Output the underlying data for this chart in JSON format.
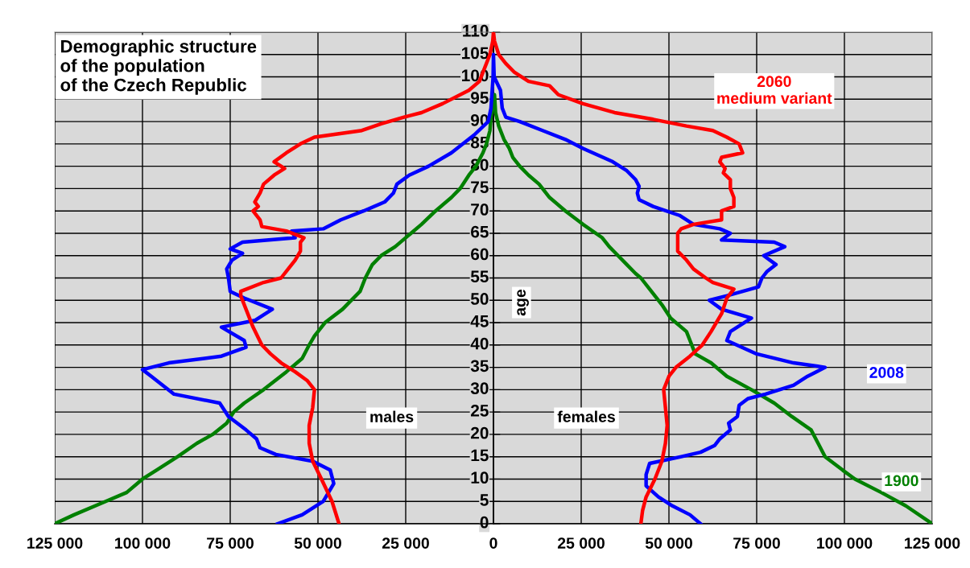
{
  "chart_data": {
    "type": "line",
    "title": "Demographic structure\nof the population\nof the Czech Republic",
    "ylabel": "age",
    "annotations": [
      "males",
      "females"
    ],
    "xlim": [
      -125000,
      125000
    ],
    "xticks": [
      {
        "value": -125000,
        "label": "125 000"
      },
      {
        "value": -100000,
        "label": "100 000"
      },
      {
        "value": -75000,
        "label": "75 000"
      },
      {
        "value": -50000,
        "label": "50 000"
      },
      {
        "value": -25000,
        "label": "25 000"
      },
      0,
      {
        "value": 25000,
        "label": "25 000"
      },
      {
        "value": 50000,
        "label": "50 000"
      },
      {
        "value": 75000,
        "label": "75 000"
      },
      {
        "value": 100000,
        "label": "100 000"
      },
      {
        "value": 125000,
        "label": "125 000"
      }
    ],
    "ylim": [
      0,
      110
    ],
    "yticks": [
      0,
      5,
      10,
      15,
      20,
      25,
      30,
      35,
      40,
      45,
      50,
      55,
      60,
      65,
      70,
      75,
      80,
      85,
      90,
      95,
      100,
      105,
      110
    ],
    "grid": true,
    "legend": false,
    "marker": "none",
    "line_style": "solid",
    "series": [
      {
        "name": "2060\nmedium variant",
        "color": "#ff0000",
        "x": [
          -44000,
          -46000,
          -49000,
          -51500,
          -52500,
          -52500,
          -51500,
          -51000,
          -53000,
          -56500,
          -60500,
          -63500,
          -66000,
          -68500,
          -70500,
          -72000,
          -72000,
          -65500,
          -60500,
          -58500,
          -56500,
          -55000,
          -55000,
          -54000,
          -59000,
          -66000,
          -66500,
          -68500,
          -67000,
          -68000,
          -66500,
          -65500,
          -62500,
          -59500,
          -62500,
          -59000,
          -55000,
          -51000,
          -37500,
          -32000,
          -25500,
          -20500,
          -14500,
          -7000,
          -4000,
          -2500,
          -1000,
          -200,
          0,
          300,
          1500,
          3500,
          6000,
          10000,
          16000,
          18500,
          25500,
          34500,
          45500,
          55000,
          62500,
          66500,
          70000,
          71000,
          65000,
          64500,
          66000,
          65500,
          67500,
          67500,
          68500,
          68500,
          65000,
          65000,
          57000,
          53500,
          52500,
          52500,
          52500,
          55000,
          57000,
          60500,
          62500,
          68500,
          66500,
          65000,
          62000,
          59500,
          56000,
          52000,
          50000,
          48500,
          49000,
          49500,
          49000,
          48000,
          46000,
          43500,
          42500,
          42000
        ],
        "values": [
          0,
          5,
          10,
          14,
          18,
          22,
          26,
          30,
          32,
          34,
          36,
          38,
          40,
          44,
          48,
          51,
          52,
          54,
          55,
          57,
          59,
          61,
          63,
          64,
          65.5,
          66.5,
          68,
          70,
          71,
          72,
          74,
          76,
          78,
          79.5,
          81,
          83,
          85,
          86.5,
          88,
          89.5,
          91,
          92,
          94,
          97,
          99,
          102,
          105,
          108,
          110,
          108,
          105,
          103,
          101,
          99,
          98,
          96,
          94,
          92,
          90.5,
          89,
          88,
          86.5,
          85,
          83,
          82,
          81,
          79.5,
          78.5,
          77,
          75,
          73,
          71,
          70,
          68,
          67,
          66,
          65,
          63,
          61,
          59,
          57,
          55,
          54,
          52.5,
          50.5,
          47,
          43,
          40,
          37.5,
          35,
          33,
          30,
          26,
          22,
          18,
          14,
          10,
          6,
          3,
          0
        ]
      },
      {
        "name": "2008",
        "color": "#0000ff",
        "x": [
          -61500,
          -54500,
          -48500,
          -45500,
          -46500,
          -51500,
          -62000,
          -66500,
          -67500,
          -70500,
          -75500,
          -78000,
          -91000,
          -97500,
          -100000,
          -92500,
          -77500,
          -70500,
          -71000,
          -77500,
          -68000,
          -63000,
          -71000,
          -75000,
          -75500,
          -76000,
          -74500,
          -71500,
          -75000,
          -71500,
          -56500,
          -57500,
          -48500,
          -43500,
          -37000,
          -31000,
          -28500,
          -27500,
          -24000,
          -18500,
          -12000,
          -5500,
          -1500,
          -700,
          -100,
          0,
          0,
          200,
          2000,
          2500,
          3500,
          7500,
          14000,
          20500,
          25500,
          34000,
          38000,
          40500,
          41500,
          41000,
          41500,
          45500,
          53000,
          57000,
          64500,
          67500,
          65000,
          80000,
          83000,
          77000,
          80500,
          78000,
          76500,
          75500,
          66500,
          61500,
          65000,
          73500,
          67500,
          66500,
          75000,
          85500,
          94500,
          89500,
          85500,
          77500,
          72500,
          70000,
          69500,
          67000,
          67500,
          64500,
          63000,
          59000,
          53500,
          44500,
          43500,
          43500,
          47000,
          51000,
          56000,
          59000
        ],
        "values": [
          0,
          2,
          5,
          9,
          12,
          14,
          15.5,
          17,
          19,
          21,
          24,
          27,
          29,
          33,
          34.5,
          36,
          37.5,
          39.5,
          41,
          44,
          45.5,
          48,
          50.5,
          52,
          55,
          57,
          59,
          60.5,
          61.5,
          63,
          64,
          65.5,
          66,
          68,
          70,
          72,
          74,
          76,
          78,
          80,
          83,
          87,
          90,
          93,
          100,
          105,
          105,
          100,
          97,
          93,
          91,
          90,
          88,
          86,
          84,
          81,
          79,
          77,
          75.5,
          74,
          72.5,
          71,
          69,
          67,
          66,
          65,
          63.5,
          63,
          62,
          60,
          58,
          56.5,
          55,
          53,
          51,
          50,
          48,
          46,
          43,
          41,
          38,
          36,
          35,
          33,
          31,
          29,
          28,
          26.5,
          24,
          22.5,
          21,
          19,
          17.5,
          16,
          15,
          13.5,
          11,
          8.5,
          6,
          4,
          2,
          0
        ]
      },
      {
        "name": "1900",
        "color": "#008000",
        "x": [
          -125000,
          -119500,
          -110500,
          -104500,
          -100000,
          -96000,
          -90000,
          -84500,
          -80000,
          -76000,
          -74000,
          -71000,
          -65500,
          -59000,
          -54500,
          -52500,
          -51000,
          -48000,
          -43000,
          -38000,
          -36500,
          -34500,
          -32000,
          -28000,
          -23500,
          -20500,
          -16500,
          -12000,
          -9500,
          -7000,
          -5000,
          -3000,
          -2000,
          -1000,
          -700,
          0,
          300,
          600,
          1500,
          3000,
          4500,
          5500,
          7500,
          10000,
          13000,
          16000,
          20500,
          25500,
          31000,
          33000,
          35500,
          38000,
          40500,
          42000,
          45000,
          48000,
          50500,
          55000,
          56000,
          57500,
          62000,
          66500,
          73500,
          80000,
          85000,
          90500,
          92500,
          94500,
          99500,
          103000,
          110500,
          117500,
          125000
        ],
        "values": [
          0,
          2,
          5,
          7,
          10,
          12,
          15,
          18,
          20,
          22.5,
          25,
          27,
          30,
          34,
          37,
          40,
          42,
          45,
          48,
          52,
          55,
          58,
          60,
          62,
          65,
          67,
          70,
          73,
          75,
          78,
          80,
          83,
          85,
          88,
          91,
          95,
          96,
          92,
          89,
          86,
          84,
          82,
          80,
          78,
          76,
          73,
          70,
          67,
          64,
          62,
          60,
          58,
          56,
          55,
          52,
          49,
          46,
          43,
          41,
          38,
          36,
          33,
          30,
          27,
          24,
          21,
          18,
          15,
          12,
          10,
          7,
          4,
          0
        ]
      }
    ]
  }
}
